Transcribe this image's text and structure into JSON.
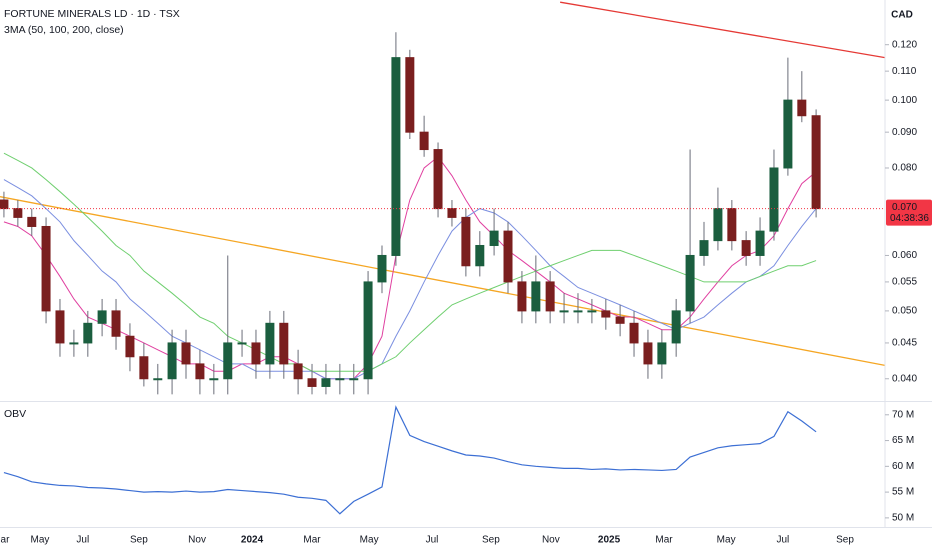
{
  "chart_data": [
    {
      "type": "candlestick",
      "title": "FORTUNE MINERALS LD · 1D · TSX",
      "indicator_label": "3MA (50, 100, 200, close)",
      "currency": "CAD",
      "log_scale": true,
      "grid": false,
      "up_color": "#1b5e3f",
      "down_color": "#7a1f1f",
      "x": [
        2023.305,
        2023.344,
        2023.383,
        2023.423,
        2023.462,
        2023.501,
        2023.54,
        2023.58,
        2023.619,
        2023.658,
        2023.697,
        2023.736,
        2023.776,
        2023.815,
        2023.854,
        2023.893,
        2023.932,
        2023.972,
        2024.011,
        2024.05,
        2024.089,
        2024.129,
        2024.168,
        2024.207,
        2024.246,
        2024.285,
        2024.325,
        2024.364,
        2024.403,
        2024.442,
        2024.482,
        2024.521,
        2024.56,
        2024.599,
        2024.638,
        2024.678,
        2024.717,
        2024.756,
        2024.795,
        2024.835,
        2024.874,
        2024.913,
        2024.952,
        2024.991,
        2025.031,
        2025.07,
        2025.109,
        2025.148,
        2025.188,
        2025.227,
        2025.266,
        2025.305,
        2025.344,
        2025.384,
        2025.423,
        2025.462,
        2025.501,
        2025.54,
        2025.58
      ],
      "open": [
        0.072,
        0.07,
        0.068,
        0.066,
        0.05,
        0.045,
        0.045,
        0.048,
        0.05,
        0.046,
        0.043,
        0.04,
        0.04,
        0.045,
        0.042,
        0.04,
        0.04,
        0.045,
        0.045,
        0.042,
        0.048,
        0.042,
        0.04,
        0.039,
        0.04,
        0.04,
        0.04,
        0.055,
        0.06,
        0.115,
        0.09,
        0.085,
        0.07,
        0.068,
        0.058,
        0.062,
        0.065,
        0.055,
        0.05,
        0.055,
        0.05,
        0.05,
        0.05,
        0.05,
        0.049,
        0.048,
        0.045,
        0.042,
        0.045,
        0.05,
        0.06,
        0.063,
        0.07,
        0.063,
        0.06,
        0.065,
        0.08,
        0.1,
        0.095
      ],
      "high": [
        0.074,
        0.072,
        0.07,
        0.068,
        0.052,
        0.047,
        0.05,
        0.052,
        0.052,
        0.048,
        0.045,
        0.042,
        0.047,
        0.047,
        0.044,
        0.042,
        0.06,
        0.047,
        0.047,
        0.05,
        0.05,
        0.044,
        0.042,
        0.042,
        0.042,
        0.042,
        0.057,
        0.062,
        0.125,
        0.118,
        0.095,
        0.087,
        0.072,
        0.07,
        0.065,
        0.07,
        0.067,
        0.057,
        0.06,
        0.057,
        0.053,
        0.053,
        0.052,
        0.052,
        0.051,
        0.05,
        0.047,
        0.047,
        0.052,
        0.085,
        0.067,
        0.075,
        0.072,
        0.065,
        0.068,
        0.085,
        0.115,
        0.11,
        0.097
      ],
      "low": [
        0.068,
        0.066,
        0.064,
        0.048,
        0.043,
        0.043,
        0.043,
        0.046,
        0.044,
        0.041,
        0.039,
        0.038,
        0.038,
        0.04,
        0.038,
        0.038,
        0.038,
        0.043,
        0.04,
        0.04,
        0.04,
        0.038,
        0.038,
        0.038,
        0.038,
        0.038,
        0.038,
        0.053,
        0.058,
        0.088,
        0.083,
        0.068,
        0.066,
        0.056,
        0.056,
        0.06,
        0.053,
        0.048,
        0.048,
        0.048,
        0.048,
        0.048,
        0.048,
        0.047,
        0.046,
        0.043,
        0.04,
        0.04,
        0.043,
        0.048,
        0.058,
        0.061,
        0.061,
        0.058,
        0.058,
        0.063,
        0.078,
        0.093,
        0.068
      ],
      "close": [
        0.07,
        0.068,
        0.066,
        0.05,
        0.045,
        0.045,
        0.048,
        0.05,
        0.046,
        0.043,
        0.04,
        0.04,
        0.045,
        0.042,
        0.04,
        0.04,
        0.045,
        0.045,
        0.042,
        0.048,
        0.042,
        0.04,
        0.039,
        0.04,
        0.04,
        0.04,
        0.055,
        0.06,
        0.115,
        0.09,
        0.085,
        0.07,
        0.068,
        0.058,
        0.062,
        0.065,
        0.055,
        0.05,
        0.055,
        0.05,
        0.05,
        0.05,
        0.05,
        0.049,
        0.048,
        0.045,
        0.042,
        0.045,
        0.05,
        0.06,
        0.063,
        0.07,
        0.063,
        0.06,
        0.065,
        0.08,
        0.1,
        0.095,
        0.07
      ],
      "moving_averages": [
        {
          "color": "#e040a0",
          "values": [
            0.067,
            0.066,
            0.064,
            0.06,
            0.056,
            0.052,
            0.049,
            0.048,
            0.047,
            0.046,
            0.045,
            0.044,
            0.043,
            0.042,
            0.042,
            0.041,
            0.041,
            0.042,
            0.042,
            0.043,
            0.043,
            0.042,
            0.041,
            0.04,
            0.04,
            0.04,
            0.042,
            0.046,
            0.06,
            0.072,
            0.08,
            0.083,
            0.078,
            0.072,
            0.067,
            0.064,
            0.061,
            0.059,
            0.057,
            0.055,
            0.053,
            0.052,
            0.051,
            0.05,
            0.049,
            0.049,
            0.048,
            0.047,
            0.047,
            0.049,
            0.052,
            0.055,
            0.058,
            0.06,
            0.061,
            0.064,
            0.07,
            0.076,
            0.079
          ]
        },
        {
          "color": "#7b8fe0",
          "values": [
            0.077,
            0.075,
            0.073,
            0.07,
            0.067,
            0.063,
            0.06,
            0.057,
            0.055,
            0.052,
            0.05,
            0.048,
            0.046,
            0.045,
            0.044,
            0.043,
            0.042,
            0.042,
            0.041,
            0.041,
            0.041,
            0.041,
            0.041,
            0.04,
            0.04,
            0.04,
            0.041,
            0.042,
            0.046,
            0.05,
            0.055,
            0.06,
            0.065,
            0.068,
            0.07,
            0.069,
            0.067,
            0.064,
            0.061,
            0.058,
            0.056,
            0.054,
            0.053,
            0.052,
            0.051,
            0.05,
            0.049,
            0.048,
            0.047,
            0.048,
            0.049,
            0.051,
            0.053,
            0.055,
            0.056,
            0.058,
            0.062,
            0.066,
            0.07
          ]
        },
        {
          "color": "#6fcf6f",
          "values": [
            0.084,
            0.082,
            0.08,
            0.077,
            0.074,
            0.071,
            0.068,
            0.065,
            0.062,
            0.06,
            0.057,
            0.055,
            0.053,
            0.051,
            0.049,
            0.048,
            0.046,
            0.045,
            0.044,
            0.043,
            0.042,
            0.042,
            0.041,
            0.041,
            0.041,
            0.041,
            0.041,
            0.042,
            0.043,
            0.045,
            0.047,
            0.049,
            0.051,
            0.052,
            0.053,
            0.054,
            0.055,
            0.056,
            0.057,
            0.058,
            0.059,
            0.06,
            0.061,
            0.061,
            0.061,
            0.06,
            0.059,
            0.058,
            0.057,
            0.056,
            0.055,
            0.055,
            0.055,
            0.055,
            0.056,
            0.057,
            0.058,
            0.058,
            0.059
          ]
        }
      ],
      "trend_lines": [
        {
          "color": "#e53935",
          "x": [
            2024.863,
            2025.773
          ],
          "values": [
            0.138,
            0.115
          ]
        },
        {
          "color": "#f5a623",
          "x": [
            2023.294,
            2025.773
          ],
          "values": [
            0.0728,
            0.0418
          ]
        }
      ],
      "last_price": {
        "value": 0.07,
        "label": "0.070",
        "countdown": "04:38:36",
        "color": "#f23645"
      },
      "xlim": [
        2023.294,
        2025.773
      ],
      "xticks": [
        {
          "value": 2023.308,
          "label": "ar"
        },
        {
          "value": 2023.406,
          "label": "May"
        },
        {
          "value": 2023.526,
          "label": "Jul"
        },
        {
          "value": 2023.683,
          "label": "Sep"
        },
        {
          "value": 2023.846,
          "label": "Nov"
        },
        2024,
        {
          "value": 2024.168,
          "label": "Mar"
        },
        {
          "value": 2024.328,
          "label": "May"
        },
        {
          "value": 2024.504,
          "label": "Jul"
        },
        {
          "value": 2024.669,
          "label": "Sep"
        },
        {
          "value": 2024.837,
          "label": "Nov"
        },
        2025,
        {
          "value": 2025.154,
          "label": "Mar"
        },
        {
          "value": 2025.328,
          "label": "May"
        },
        {
          "value": 2025.487,
          "label": "Jul"
        },
        {
          "value": 2025.661,
          "label": "Sep"
        }
      ],
      "ylim": [
        0.0373,
        0.139
      ],
      "yticks": [
        {
          "value": 0.12,
          "label": "0.120"
        },
        {
          "value": 0.11,
          "label": "0.110"
        },
        {
          "value": 0.1,
          "label": "0.100"
        },
        {
          "value": 0.09,
          "label": "0.090"
        },
        {
          "value": 0.08,
          "label": "0.080"
        },
        {
          "value": 0.06,
          "label": "0.060"
        },
        {
          "value": 0.055,
          "label": "0.055"
        },
        {
          "value": 0.05,
          "label": "0.050"
        },
        {
          "value": 0.045,
          "label": "0.045"
        },
        {
          "value": 0.04,
          "label": "0.040"
        }
      ]
    },
    {
      "type": "line",
      "title": "OBV",
      "color": "#3c6fd4",
      "x": [
        2023.305,
        2023.344,
        2023.383,
        2023.423,
        2023.462,
        2023.501,
        2023.54,
        2023.58,
        2023.619,
        2023.658,
        2023.697,
        2023.736,
        2023.776,
        2023.815,
        2023.854,
        2023.893,
        2023.932,
        2023.972,
        2024.011,
        2024.05,
        2024.089,
        2024.129,
        2024.168,
        2024.207,
        2024.246,
        2024.285,
        2024.325,
        2024.364,
        2024.403,
        2024.442,
        2024.482,
        2024.521,
        2024.56,
        2024.599,
        2024.638,
        2024.678,
        2024.717,
        2024.756,
        2024.795,
        2024.835,
        2024.874,
        2024.913,
        2024.952,
        2024.991,
        2025.031,
        2025.07,
        2025.109,
        2025.148,
        2025.188,
        2025.227,
        2025.266,
        2025.305,
        2025.344,
        2025.384,
        2025.423,
        2025.462,
        2025.501,
        2025.54,
        2025.58
      ],
      "values": [
        58.8,
        58.0,
        57.0,
        56.6,
        56.3,
        56.2,
        55.9,
        55.8,
        55.6,
        55.3,
        55.0,
        55.1,
        55.0,
        55.2,
        55.0,
        55.1,
        55.5,
        55.3,
        55.1,
        54.9,
        54.6,
        54.0,
        53.8,
        53.4,
        50.8,
        53.2,
        54.6,
        56.0,
        71.5,
        66.0,
        64.8,
        63.9,
        63.0,
        62.2,
        62.0,
        61.6,
        60.9,
        60.3,
        60.0,
        59.8,
        59.6,
        59.6,
        59.4,
        59.5,
        59.3,
        59.4,
        59.3,
        59.2,
        59.4,
        61.8,
        62.7,
        63.6,
        64.0,
        64.2,
        64.4,
        65.8,
        70.6,
        68.8,
        66.7
      ],
      "xlim": [
        2023.294,
        2025.773
      ],
      "ylim": [
        49.2,
        71.9
      ],
      "yticks": [
        {
          "value": 70,
          "label": "70 M"
        },
        {
          "value": 65,
          "label": "65 M"
        },
        {
          "value": 60,
          "label": "60 M"
        },
        {
          "value": 55,
          "label": "55 M"
        },
        {
          "value": 50,
          "label": "50 M"
        }
      ]
    }
  ]
}
